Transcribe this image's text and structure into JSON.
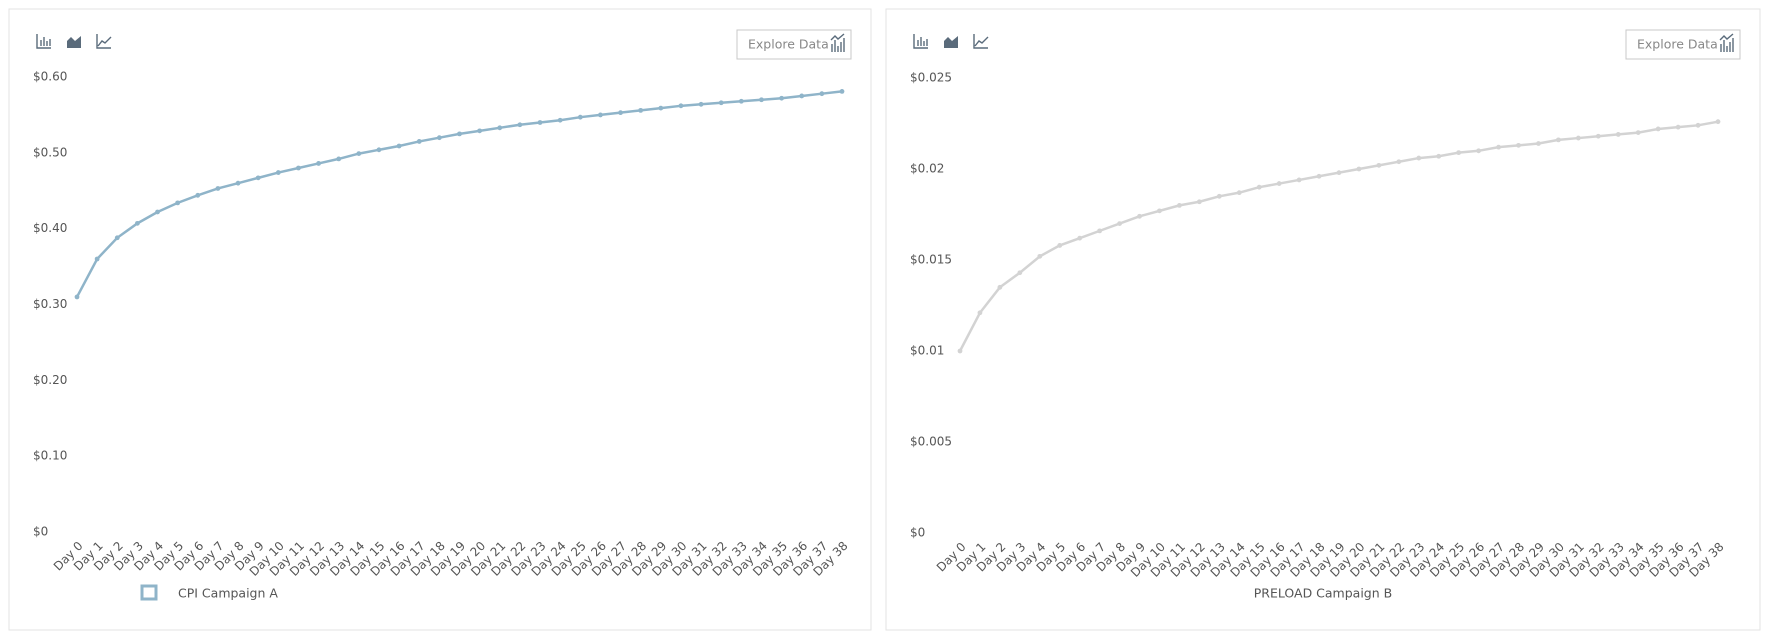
{
  "chart_data": [
    {
      "type": "line",
      "explore_button": "Explore Data",
      "categories": [
        "Day 0",
        "Day 1",
        "Day 2",
        "Day 3",
        "Day 4",
        "Day 5",
        "Day 6",
        "Day 7",
        "Day 8",
        "Day 9",
        "Day 10",
        "Day 11",
        "Day 12",
        "Day 13",
        "Day 14",
        "Day 15",
        "Day 16",
        "Day 17",
        "Day 18",
        "Day 19",
        "Day 20",
        "Day 21",
        "Day 22",
        "Day 23",
        "Day 24",
        "Day 25",
        "Day 26",
        "Day 27",
        "Day 28",
        "Day 29",
        "Day 30",
        "Day 31",
        "Day 32",
        "Day 33",
        "Day 34",
        "Day 35",
        "Day 36",
        "Day 37",
        "Day 38"
      ],
      "series": [
        {
          "name": "CPI Campaign A",
          "color": "#8fb4c9",
          "values": [
            0.31,
            0.36,
            0.388,
            0.407,
            0.422,
            0.434,
            0.444,
            0.453,
            0.46,
            0.467,
            0.474,
            0.48,
            0.486,
            0.492,
            0.499,
            0.504,
            0.509,
            0.515,
            0.52,
            0.525,
            0.529,
            0.533,
            0.537,
            0.54,
            0.543,
            0.547,
            0.55,
            0.553,
            0.556,
            0.559,
            0.562,
            0.564,
            0.566,
            0.568,
            0.57,
            0.572,
            0.575,
            0.578,
            0.581
          ]
        }
      ],
      "legend_marker": true,
      "ylim": [
        0,
        0.6
      ],
      "yticks": [
        {
          "value": 0,
          "label": "$0"
        },
        {
          "value": 0.1,
          "label": "$0.10"
        },
        {
          "value": 0.2,
          "label": "$0.20"
        },
        {
          "value": 0.3,
          "label": "$0.30"
        },
        {
          "value": 0.4,
          "label": "$0.40"
        },
        {
          "value": 0.5,
          "label": "$0.50"
        },
        {
          "value": 0.6,
          "label": "$0.60"
        }
      ]
    },
    {
      "type": "line",
      "explore_button": "Explore Data",
      "categories": [
        "Day 0",
        "Day 1",
        "Day 2",
        "Day 3",
        "Day 4",
        "Day 5",
        "Day 6",
        "Day 7",
        "Day 8",
        "Day 9",
        "Day 10",
        "Day 11",
        "Day 12",
        "Day 13",
        "Day 14",
        "Day 15",
        "Day 16",
        "Day 17",
        "Day 18",
        "Day 19",
        "Day 20",
        "Day 21",
        "Day 22",
        "Day 23",
        "Day 24",
        "Day 25",
        "Day 26",
        "Day 27",
        "Day 28",
        "Day 29",
        "Day 30",
        "Day 31",
        "Day 32",
        "Day 33",
        "Day 34",
        "Day 35",
        "Day 36",
        "Day 37",
        "Day 38"
      ],
      "series": [
        {
          "name": "PRELOAD Campaign B",
          "color": "#d3d3d3",
          "values": [
            0.01,
            0.0121,
            0.0135,
            0.0143,
            0.0152,
            0.0158,
            0.0162,
            0.0166,
            0.017,
            0.0174,
            0.0177,
            0.018,
            0.0182,
            0.0185,
            0.0187,
            0.019,
            0.0192,
            0.0194,
            0.0196,
            0.0198,
            0.02,
            0.0202,
            0.0204,
            0.0206,
            0.0207,
            0.0209,
            0.021,
            0.0212,
            0.0213,
            0.0214,
            0.0216,
            0.0217,
            0.0218,
            0.0219,
            0.022,
            0.0222,
            0.0223,
            0.0224,
            0.0226
          ]
        }
      ],
      "legend_marker": false,
      "ylim": [
        0,
        0.025
      ],
      "yticks": [
        {
          "value": 0,
          "label": "$0"
        },
        {
          "value": 0.005,
          "label": "$0.005"
        },
        {
          "value": 0.01,
          "label": "$0.01"
        },
        {
          "value": 0.015,
          "label": "$0.015"
        },
        {
          "value": 0.02,
          "label": "$0.02"
        },
        {
          "value": 0.025,
          "label": "$0.025"
        }
      ]
    }
  ]
}
